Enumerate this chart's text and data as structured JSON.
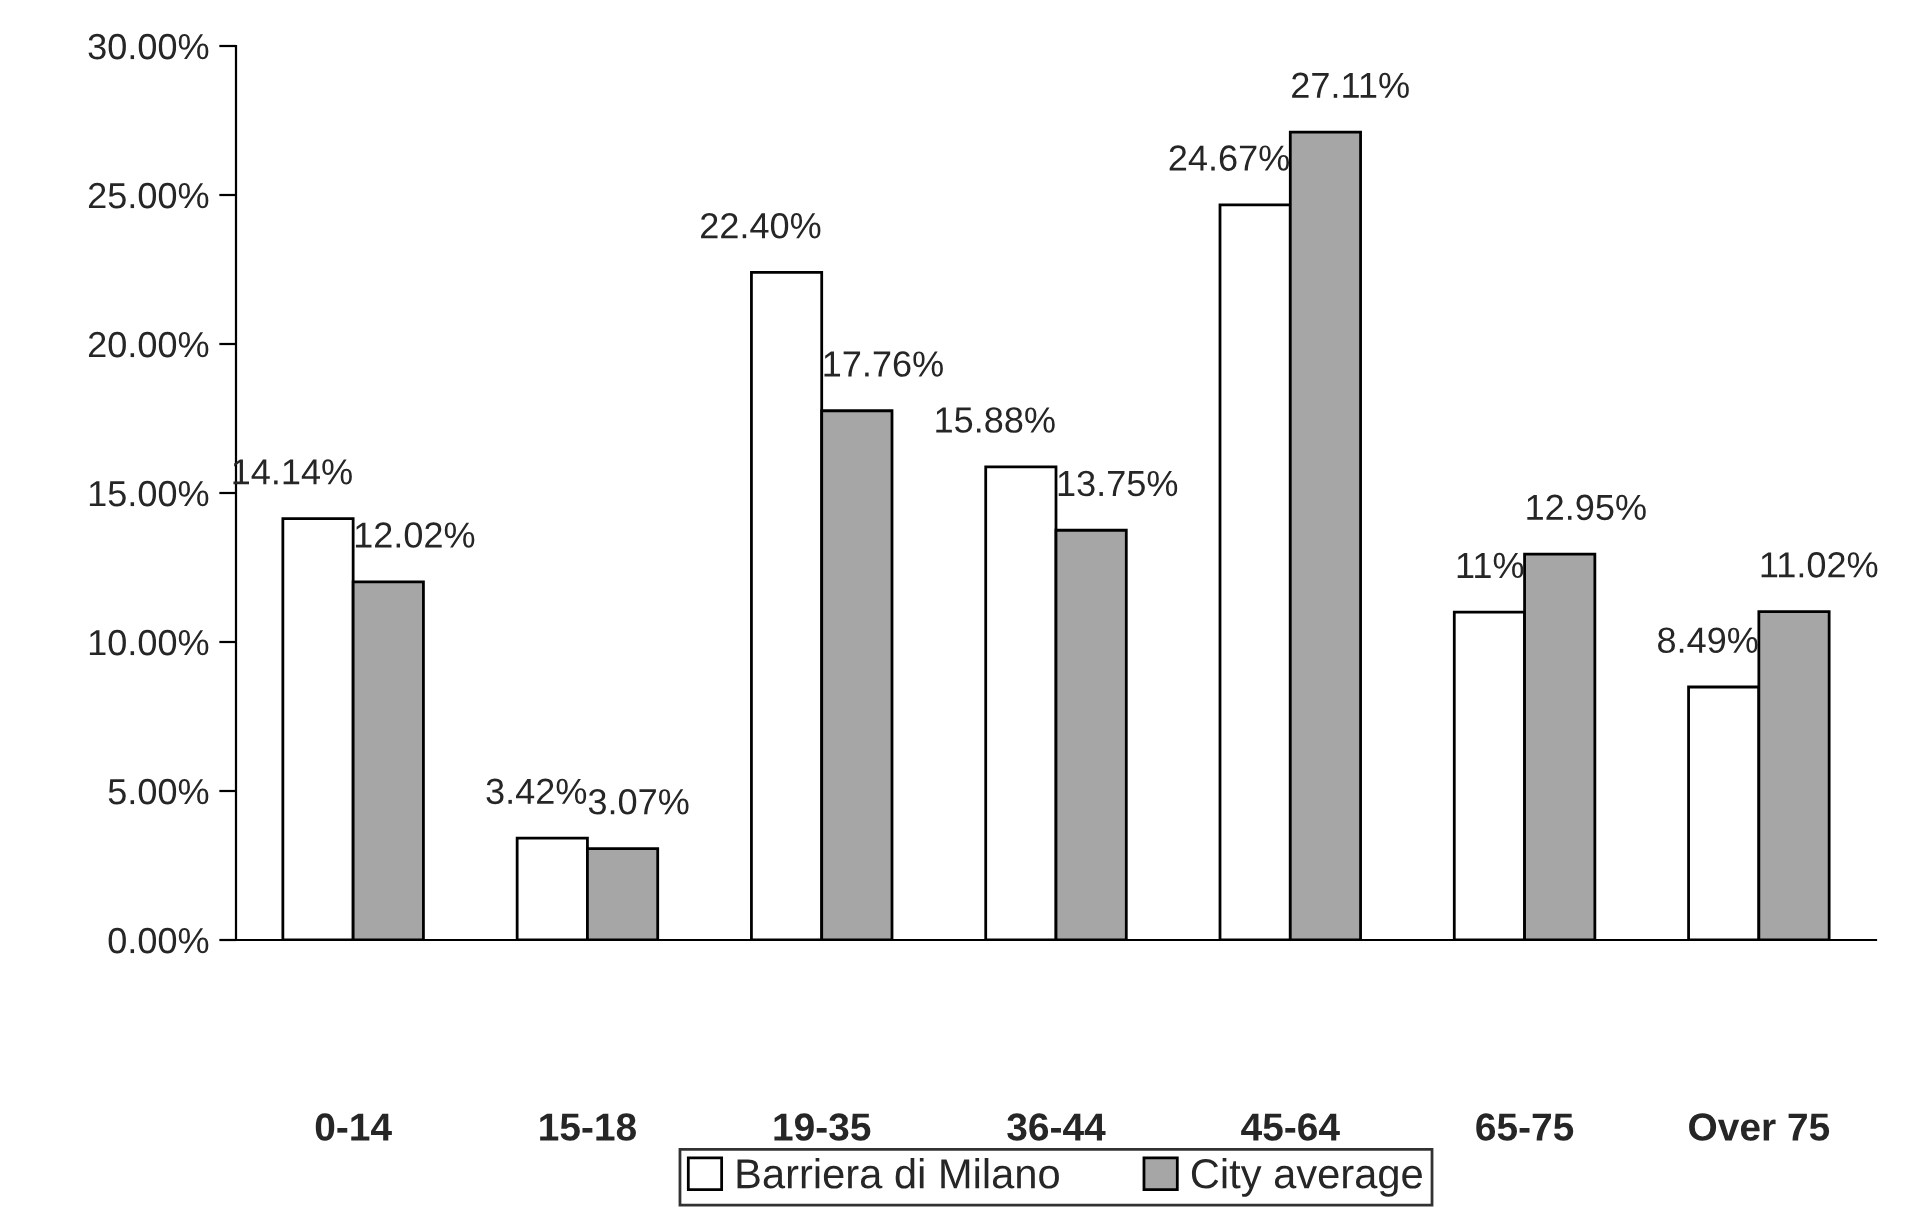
{
  "chart_data": {
    "type": "bar",
    "categories": [
      "0-14",
      "15-18",
      "19-35",
      "36-44",
      "45-64",
      "65-75",
      "Over 75"
    ],
    "series": [
      {
        "name": "Barriera di Milano",
        "color": "#ffffff",
        "values": [
          14.14,
          3.42,
          22.4,
          15.88,
          24.67,
          11,
          8.49
        ],
        "value_labels": [
          "14.14%",
          "3.42%",
          "22.40%",
          "15.88%",
          "24.67%",
          "11%",
          "8.49%"
        ]
      },
      {
        "name": "City average",
        "color": "#a6a6a6",
        "values": [
          12.02,
          3.07,
          17.76,
          13.75,
          27.11,
          12.95,
          11.02
        ],
        "value_labels": [
          "12.02%",
          "3.07%",
          "17.76%",
          "13.75%",
          "27.11%",
          "12.95%",
          "11.02%"
        ]
      }
    ],
    "ylim": [
      0,
      30
    ],
    "yticks": [
      {
        "value": 0,
        "label": "0.00%"
      },
      {
        "value": 5,
        "label": "5.00%"
      },
      {
        "value": 10,
        "label": "10.00%"
      },
      {
        "value": 15,
        "label": "15.00%"
      },
      {
        "value": 20,
        "label": "20.00%"
      },
      {
        "value": 25,
        "label": "25.00%"
      },
      {
        "value": 30,
        "label": "30.00%"
      }
    ],
    "grid": false,
    "legend": "bottom"
  }
}
